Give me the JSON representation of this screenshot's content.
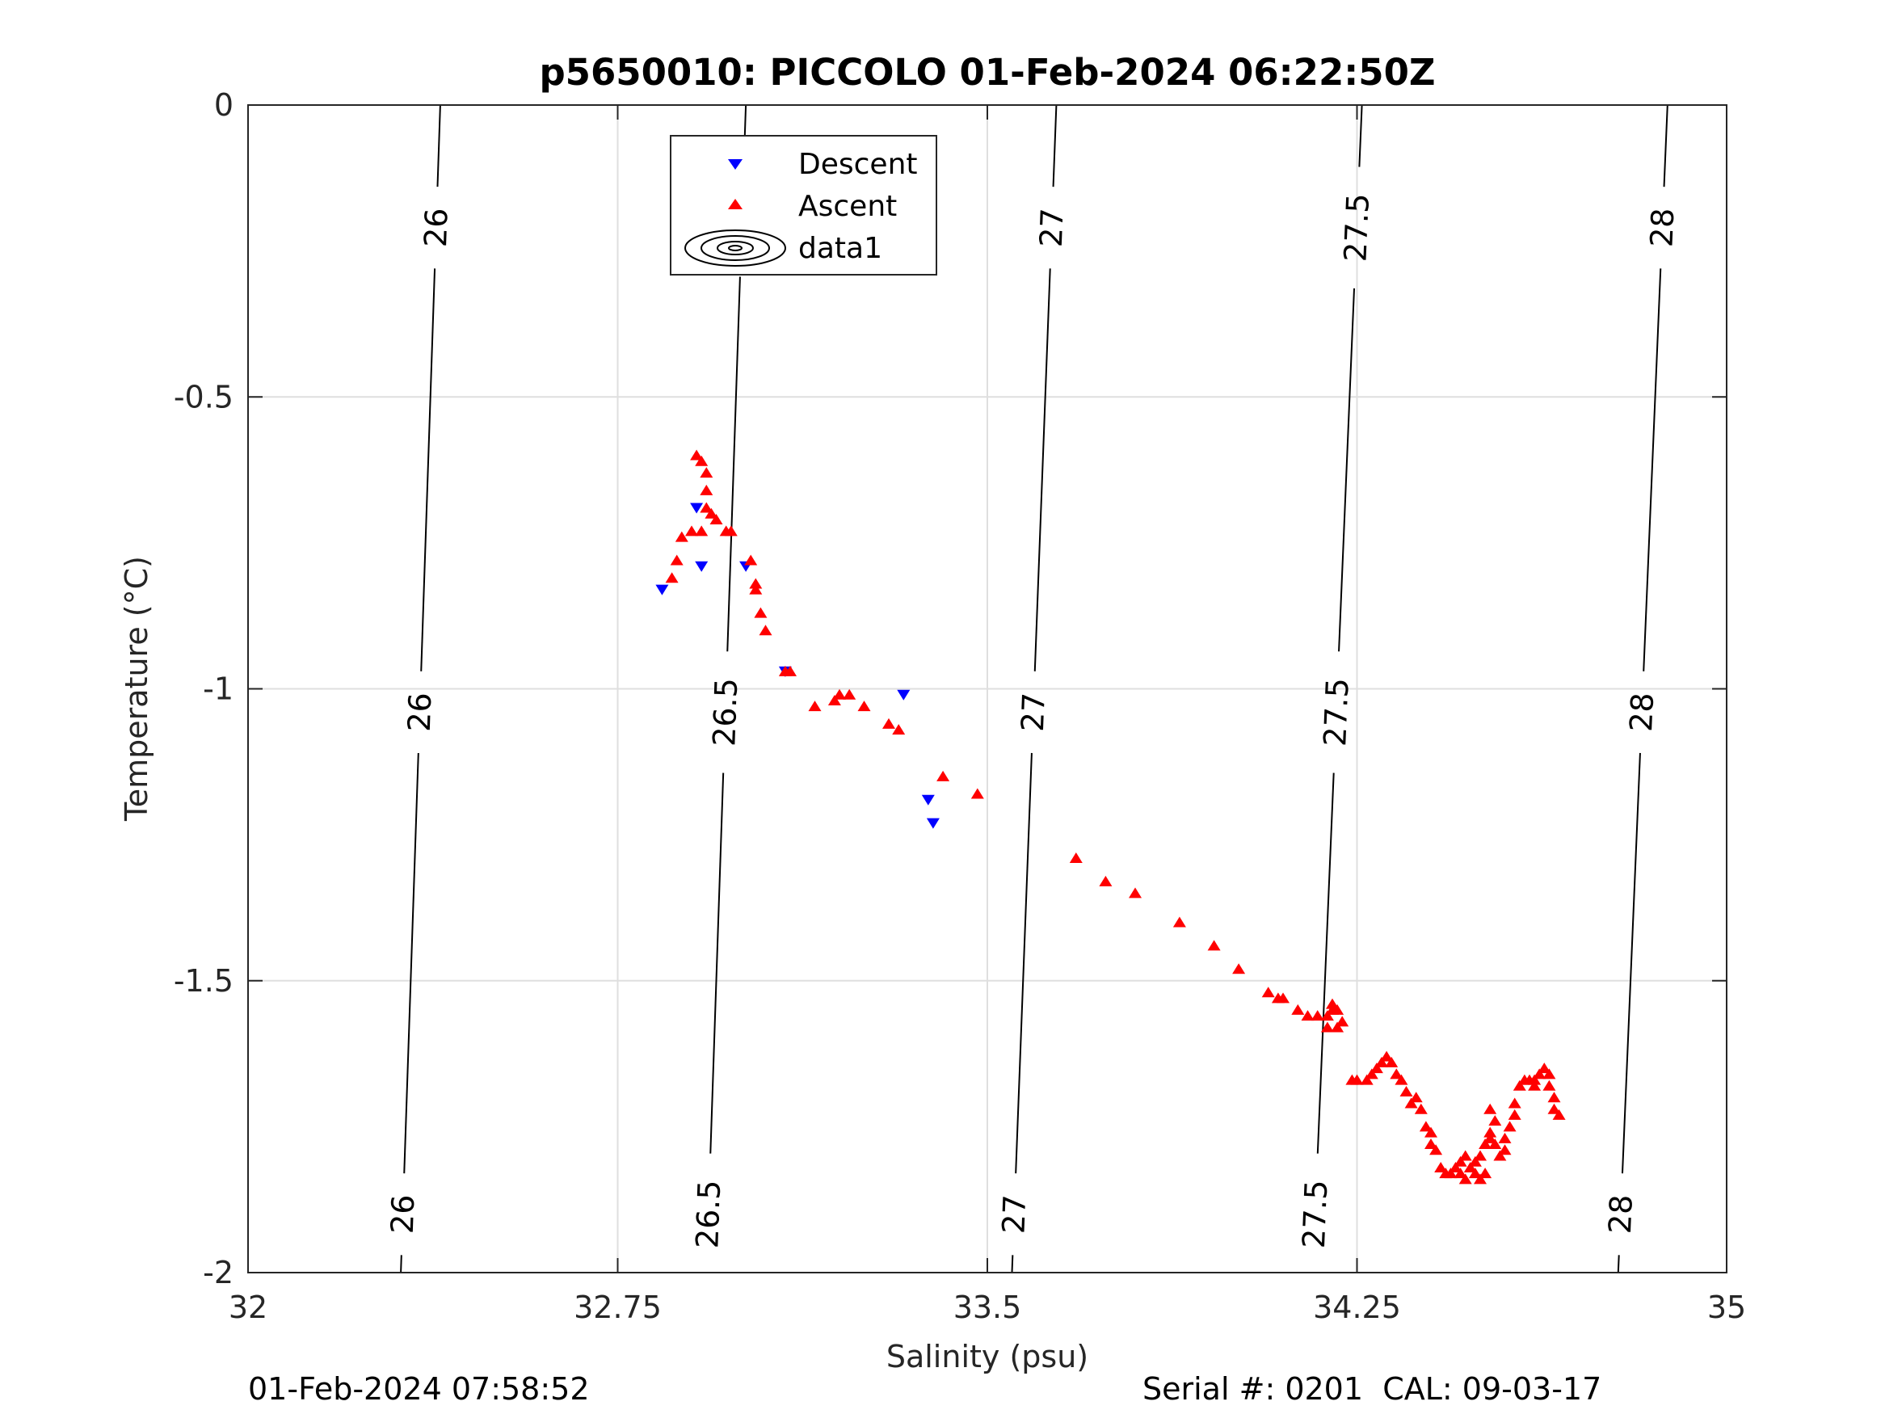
{
  "chart_data": {
    "type": "scatter",
    "title": "p5650010: PICCOLO 01-Feb-2024 06:22:50Z",
    "xlabel": "Salinity (psu)",
    "ylabel": "Temperature (°C)",
    "xlim": [
      32,
      35
    ],
    "ylim": [
      -2,
      0
    ],
    "xticks": [
      32,
      32.75,
      33.5,
      34.25,
      35
    ],
    "xtick_labels": [
      "32",
      "32.75",
      "33.5",
      "34.25",
      "35"
    ],
    "yticks": [
      0,
      -0.5,
      -1,
      -1.5,
      -2
    ],
    "ytick_labels": [
      "0",
      "-0.5",
      "-1",
      "-1.5",
      "-2"
    ],
    "grid": true,
    "legend": {
      "placement": "top",
      "entries": [
        "Descent",
        "Ascent",
        "data1"
      ]
    },
    "colors": {
      "descent": "#0000ff",
      "ascent": "#ff0000",
      "contour": "#000000",
      "grid": "#dfdfdf",
      "axis": "#262626"
    },
    "density_contours": [
      {
        "label": "26",
        "bottom": [
          32.31,
          -2
        ],
        "top": [
          32.39,
          0
        ],
        "label_at": [
          -0.21,
          -1.04,
          -1.9
        ]
      },
      {
        "label": "26.5",
        "bottom": [
          32.93,
          -2
        ],
        "top": [
          33.01,
          0
        ],
        "label_at": [
          -0.19,
          -1.04,
          -1.9
        ]
      },
      {
        "label": "27",
        "bottom": [
          33.55,
          -2
        ],
        "top": [
          33.64,
          0
        ],
        "label_at": [
          -0.21,
          -1.04,
          -1.9
        ]
      },
      {
        "label": "27.5",
        "bottom": [
          34.16,
          -2
        ],
        "top": [
          34.26,
          0
        ],
        "label_at": [
          -0.21,
          -1.04,
          -1.9
        ]
      },
      {
        "label": "28",
        "bottom": [
          34.78,
          -2
        ],
        "top": [
          34.88,
          0
        ],
        "label_at": [
          -0.21,
          -1.04,
          -1.9
        ]
      }
    ],
    "series": [
      {
        "name": "Descent",
        "marker": "triangle-down",
        "points": [
          [
            32.84,
            -0.83
          ],
          [
            32.91,
            -0.69
          ],
          [
            32.92,
            -0.79
          ],
          [
            33.01,
            -0.79
          ],
          [
            33.09,
            -0.97
          ],
          [
            33.33,
            -1.01
          ],
          [
            33.38,
            -1.19
          ],
          [
            33.39,
            -1.23
          ]
        ]
      },
      {
        "name": "Ascent",
        "marker": "triangle-up",
        "points": [
          [
            32.86,
            -0.81
          ],
          [
            32.87,
            -0.78
          ],
          [
            32.88,
            -0.74
          ],
          [
            32.9,
            -0.73
          ],
          [
            32.91,
            -0.6
          ],
          [
            32.92,
            -0.61
          ],
          [
            32.93,
            -0.63
          ],
          [
            32.93,
            -0.66
          ],
          [
            32.93,
            -0.69
          ],
          [
            32.94,
            -0.7
          ],
          [
            32.92,
            -0.73
          ],
          [
            32.95,
            -0.71
          ],
          [
            32.97,
            -0.73
          ],
          [
            32.98,
            -0.73
          ],
          [
            33.02,
            -0.78
          ],
          [
            33.03,
            -0.82
          ],
          [
            33.03,
            -0.83
          ],
          [
            33.04,
            -0.87
          ],
          [
            33.05,
            -0.9
          ],
          [
            33.09,
            -0.97
          ],
          [
            33.1,
            -0.97
          ],
          [
            33.15,
            -1.03
          ],
          [
            33.19,
            -1.02
          ],
          [
            33.2,
            -1.01
          ],
          [
            33.22,
            -1.01
          ],
          [
            33.25,
            -1.03
          ],
          [
            33.3,
            -1.06
          ],
          [
            33.32,
            -1.07
          ],
          [
            33.41,
            -1.15
          ],
          [
            33.48,
            -1.18
          ],
          [
            33.68,
            -1.29
          ],
          [
            33.74,
            -1.33
          ],
          [
            33.8,
            -1.35
          ],
          [
            33.89,
            -1.4
          ],
          [
            33.96,
            -1.44
          ],
          [
            34.01,
            -1.48
          ],
          [
            34.07,
            -1.52
          ],
          [
            34.09,
            -1.53
          ],
          [
            34.1,
            -1.53
          ],
          [
            34.13,
            -1.55
          ],
          [
            34.15,
            -1.56
          ],
          [
            34.17,
            -1.56
          ],
          [
            34.19,
            -1.56
          ],
          [
            34.2,
            -1.55
          ],
          [
            34.22,
            -1.57
          ],
          [
            34.19,
            -1.58
          ],
          [
            34.2,
            -1.54
          ],
          [
            34.21,
            -1.55
          ],
          [
            34.21,
            -1.58
          ],
          [
            34.24,
            -1.67
          ],
          [
            34.25,
            -1.67
          ],
          [
            34.27,
            -1.67
          ],
          [
            34.28,
            -1.66
          ],
          [
            34.29,
            -1.65
          ],
          [
            34.3,
            -1.64
          ],
          [
            34.31,
            -1.63
          ],
          [
            34.32,
            -1.64
          ],
          [
            34.33,
            -1.66
          ],
          [
            34.34,
            -1.67
          ],
          [
            34.35,
            -1.69
          ],
          [
            34.36,
            -1.71
          ],
          [
            34.37,
            -1.7
          ],
          [
            34.38,
            -1.72
          ],
          [
            34.39,
            -1.75
          ],
          [
            34.4,
            -1.76
          ],
          [
            34.4,
            -1.78
          ],
          [
            34.41,
            -1.79
          ],
          [
            34.42,
            -1.82
          ],
          [
            34.43,
            -1.83
          ],
          [
            34.44,
            -1.83
          ],
          [
            34.45,
            -1.82
          ],
          [
            34.46,
            -1.81
          ],
          [
            34.47,
            -1.8
          ],
          [
            34.48,
            -1.82
          ],
          [
            34.49,
            -1.83
          ],
          [
            34.5,
            -1.84
          ],
          [
            34.51,
            -1.83
          ],
          [
            34.5,
            -1.8
          ],
          [
            34.51,
            -1.78
          ],
          [
            34.52,
            -1.76
          ],
          [
            34.53,
            -1.74
          ],
          [
            34.52,
            -1.72
          ],
          [
            34.53,
            -1.78
          ],
          [
            34.54,
            -1.8
          ],
          [
            34.55,
            -1.77
          ],
          [
            34.56,
            -1.75
          ],
          [
            34.57,
            -1.73
          ],
          [
            34.57,
            -1.71
          ],
          [
            34.58,
            -1.68
          ],
          [
            34.59,
            -1.67
          ],
          [
            34.6,
            -1.67
          ],
          [
            34.61,
            -1.67
          ],
          [
            34.62,
            -1.66
          ],
          [
            34.63,
            -1.65
          ],
          [
            34.64,
            -1.66
          ],
          [
            34.64,
            -1.68
          ],
          [
            34.65,
            -1.7
          ],
          [
            34.65,
            -1.72
          ],
          [
            34.66,
            -1.73
          ],
          [
            34.47,
            -1.84
          ],
          [
            34.49,
            -1.81
          ],
          [
            34.46,
            -1.83
          ],
          [
            34.52,
            -1.77
          ],
          [
            34.55,
            -1.79
          ],
          [
            34.61,
            -1.68
          ]
        ]
      }
    ]
  },
  "footer": {
    "timestamp": "01-Feb-2024 07:58:52",
    "serial": "Serial #: 0201  CAL: 09-03-17"
  }
}
